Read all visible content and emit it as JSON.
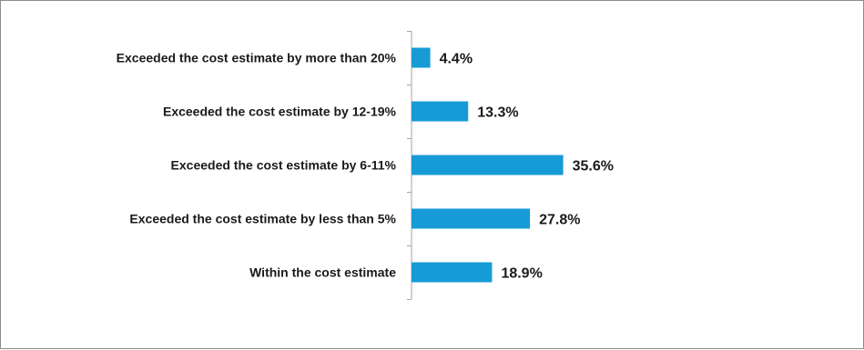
{
  "chart_data": {
    "type": "bar",
    "orientation": "horizontal",
    "categories": [
      "Exceeded the cost estimate by more than 20%",
      "Exceeded the cost estimate by 12-19%",
      "Exceeded the cost estimate by 6-11%",
      "Exceeded the cost estimate by less than 5%",
      "Within the cost estimate"
    ],
    "values": [
      4.4,
      13.3,
      35.6,
      27.8,
      18.9
    ],
    "value_labels": [
      "4.4%",
      "13.3%",
      "35.6%",
      "27.8%",
      "18.9%"
    ],
    "xlim": [
      0,
      40
    ],
    "bar_color": "#179bd7",
    "grid": false,
    "title": "",
    "xlabel": "",
    "ylabel": ""
  }
}
